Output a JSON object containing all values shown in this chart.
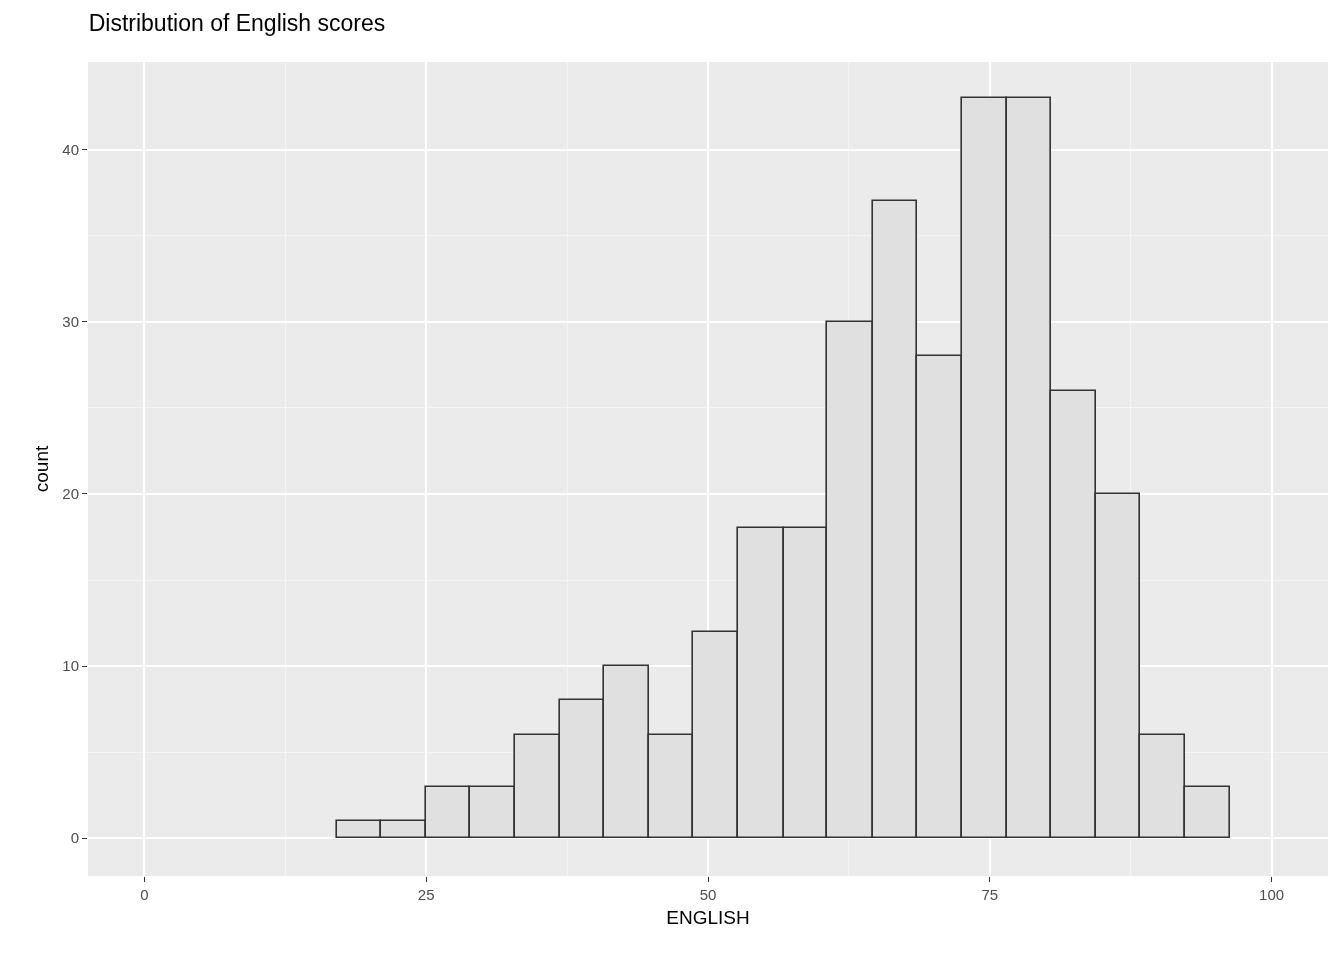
{
  "chart_data": {
    "type": "histogram",
    "title": "Distribution of English scores",
    "xlabel": "ENGLISH",
    "ylabel": "count",
    "bins": [
      17.1,
      21.0,
      25.0,
      28.9,
      32.9,
      36.9,
      40.8,
      44.8,
      48.7,
      52.7,
      56.7,
      60.6,
      64.6,
      68.5,
      72.5,
      76.5,
      80.4,
      84.4,
      88.3,
      92.3,
      96.3
    ],
    "values": [
      1,
      1,
      3,
      3,
      6,
      8,
      10,
      6,
      12,
      18,
      18,
      30,
      37,
      28,
      43,
      43,
      26,
      20,
      6,
      3
    ],
    "color": "#e0e0e0",
    "xlim": [
      -5,
      105
    ],
    "xticks": [
      0,
      25,
      50,
      75,
      100
    ],
    "ylim": [
      -2.2,
      45.1
    ],
    "yticks": [
      0,
      10,
      20,
      30,
      40
    ],
    "grid": true
  }
}
